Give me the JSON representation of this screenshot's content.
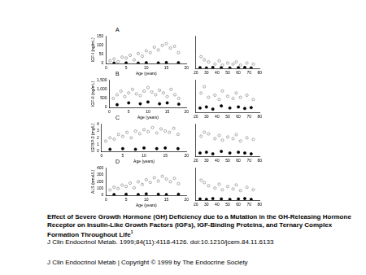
{
  "chart_data": [
    {
      "type": "scatter",
      "label": "A",
      "y_label": "IGF-I (ng/mL)",
      "x_label": "Age (years)",
      "xlim": [
        0,
        20
      ],
      "xticks": [
        0,
        5,
        10,
        15,
        20
      ],
      "ylim": [
        0,
        150
      ],
      "yticks": [
        0,
        50,
        100,
        150
      ],
      "grid": false,
      "series": [
        {
          "color": "#888888",
          "marker": "circle_open",
          "x": [
            1,
            2,
            3,
            4,
            5,
            6,
            7,
            8,
            9,
            10,
            11,
            12,
            13,
            14,
            15,
            16,
            17,
            18
          ],
          "values": [
            15,
            25,
            10,
            35,
            30,
            45,
            20,
            55,
            40,
            70,
            60,
            90,
            75,
            100,
            110,
            85,
            95,
            60
          ]
        },
        {
          "color": "#000000",
          "marker": "circle",
          "x": [
            2,
            5,
            8,
            10,
            13,
            15,
            18
          ],
          "values": [
            2,
            3,
            2,
            4,
            3,
            5,
            4
          ]
        }
      ]
    },
    {
      "type": "scatter",
      "tick_labels": "x",
      "xlim": [
        20,
        80
      ],
      "xticks": [
        20,
        30,
        40,
        50,
        60,
        70,
        80
      ],
      "ylim": [
        0,
        150
      ],
      "yticks": [
        0,
        50,
        100,
        150
      ],
      "grid": false,
      "series": [
        {
          "color": "#888888",
          "marker": "circle_open",
          "x": [
            25,
            28,
            32,
            38,
            42,
            45,
            50,
            55,
            58,
            62,
            68,
            74
          ],
          "values": [
            55,
            40,
            30,
            20,
            35,
            15,
            25,
            20,
            30,
            15,
            25,
            20
          ]
        },
        {
          "color": "#000000",
          "marker": "circle",
          "x": [
            24,
            30,
            36,
            44,
            52,
            60,
            66,
            72
          ],
          "values": [
            3,
            2,
            4,
            3,
            2,
            3,
            4,
            2
          ]
        }
      ]
    },
    {
      "type": "scatter",
      "label": "B",
      "y_label": "IGF-II (ng/mL)",
      "x_label": "Age (years)",
      "xlim": [
        0,
        20
      ],
      "xticks": [
        0,
        5,
        10,
        15,
        20
      ],
      "ylim": [
        0,
        1500
      ],
      "yticks": [
        0,
        500,
        1000,
        1500
      ],
      "grid": false,
      "series": [
        {
          "color": "#888888",
          "marker": "circle_open",
          "x": [
            1,
            2,
            3,
            4,
            5,
            6,
            7,
            8,
            9,
            10,
            11,
            12,
            13,
            14,
            15,
            16,
            17,
            18
          ],
          "values": [
            500,
            700,
            900,
            600,
            800,
            1000,
            750,
            650,
            900,
            1100,
            850,
            700,
            950,
            800,
            600,
            1000,
            700,
            500
          ]
        },
        {
          "color": "#000000",
          "marker": "circle",
          "x": [
            2,
            5,
            8,
            10,
            13,
            15,
            18
          ],
          "values": [
            150,
            250,
            200,
            300,
            200,
            250,
            180
          ]
        }
      ]
    },
    {
      "type": "scatter",
      "tick_labels": "x",
      "xlim": [
        20,
        80
      ],
      "xticks": [
        20,
        30,
        40,
        50,
        60,
        70,
        80
      ],
      "ylim": [
        0,
        1500
      ],
      "yticks": [
        0,
        500,
        1000,
        1500
      ],
      "grid": false,
      "series": [
        {
          "color": "#888888",
          "marker": "circle_open",
          "x": [
            25,
            28,
            32,
            38,
            42,
            45,
            50,
            55,
            58,
            62,
            68,
            74
          ],
          "values": [
            900,
            1200,
            700,
            800,
            600,
            1000,
            750,
            650,
            900,
            700,
            800,
            600
          ]
        },
        {
          "color": "#000000",
          "marker": "circle",
          "x": [
            24,
            30,
            36,
            44,
            52,
            60,
            66,
            72
          ],
          "values": [
            200,
            250,
            150,
            300,
            200,
            250,
            180,
            220
          ]
        }
      ]
    },
    {
      "type": "scatter",
      "label": "C",
      "y_label": "IGFBP-3 (mg/L)",
      "x_label": "Age (years)",
      "xlim": [
        0,
        20
      ],
      "xticks": [
        0,
        5,
        10,
        15,
        20
      ],
      "ylim": [
        0,
        4
      ],
      "yticks": [
        0,
        1,
        2,
        3,
        4
      ],
      "grid": false,
      "series": [
        {
          "color": "#888888",
          "marker": "circle_open",
          "x": [
            1,
            2,
            3,
            4,
            5,
            6,
            7,
            8,
            9,
            10,
            11,
            12,
            13,
            14,
            15,
            16,
            17,
            18
          ],
          "values": [
            1.5,
            2.0,
            1.8,
            2.5,
            2.2,
            2.8,
            2.0,
            3.0,
            2.6,
            3.2,
            2.9,
            3.5,
            2.7,
            3.3,
            3.0,
            2.8,
            3.4,
            2.5
          ]
        },
        {
          "color": "#000000",
          "marker": "circle",
          "x": [
            2,
            5,
            8,
            10,
            13,
            15,
            18
          ],
          "values": [
            0.3,
            0.4,
            0.3,
            0.5,
            0.4,
            0.5,
            0.4
          ]
        }
      ]
    },
    {
      "type": "scatter",
      "tick_labels": "x",
      "xlim": [
        20,
        80
      ],
      "xticks": [
        20,
        30,
        40,
        50,
        60,
        70,
        80
      ],
      "ylim": [
        0,
        4
      ],
      "yticks": [
        0,
        1,
        2,
        3,
        4
      ],
      "grid": false,
      "series": [
        {
          "color": "#888888",
          "marker": "circle_open",
          "x": [
            25,
            28,
            32,
            38,
            42,
            45,
            50,
            55,
            58,
            62,
            68,
            74
          ],
          "values": [
            2.5,
            3.0,
            2.8,
            2.2,
            2.6,
            2.0,
            2.4,
            2.2,
            2.7,
            1.9,
            2.3,
            2.1
          ]
        },
        {
          "color": "#000000",
          "marker": "circle",
          "x": [
            24,
            30,
            36,
            44,
            52,
            60,
            66,
            72
          ],
          "values": [
            0.4,
            0.5,
            0.3,
            0.6,
            0.4,
            0.5,
            0.4,
            0.3
          ]
        }
      ]
    },
    {
      "type": "scatter",
      "label": "D",
      "y_label": "ALS (nmol/L)",
      "x_label": "Age (years)",
      "xlim": [
        0,
        20
      ],
      "xticks": [
        0,
        5,
        10,
        15,
        20
      ],
      "ylim": [
        0,
        400
      ],
      "yticks": [
        0,
        100,
        200,
        300,
        400
      ],
      "grid": false,
      "series": [
        {
          "color": "#888888",
          "marker": "circle_open",
          "x": [
            1,
            2,
            3,
            4,
            5,
            6,
            7,
            8,
            9,
            10,
            11,
            12,
            13,
            14,
            15,
            16,
            17,
            18
          ],
          "values": [
            80,
            120,
            100,
            150,
            130,
            180,
            110,
            200,
            160,
            230,
            190,
            260,
            210,
            280,
            240,
            200,
            250,
            170
          ]
        },
        {
          "color": "#000000",
          "marker": "circle",
          "x": [
            2,
            5,
            8,
            10,
            13,
            15,
            18
          ],
          "values": [
            10,
            15,
            10,
            20,
            15,
            10,
            15
          ]
        }
      ]
    },
    {
      "type": "scatter",
      "tick_labels": "x",
      "xlim": [
        20,
        80
      ],
      "xticks": [
        20,
        30,
        40,
        50,
        60,
        70,
        80
      ],
      "ylim": [
        0,
        400
      ],
      "yticks": [
        0,
        100,
        200,
        300,
        400
      ],
      "grid": false,
      "series": [
        {
          "color": "#888888",
          "marker": "circle_open",
          "x": [
            25,
            28,
            32,
            38,
            42,
            45,
            50,
            55,
            58,
            62,
            68,
            74
          ],
          "values": [
            250,
            220,
            180,
            150,
            200,
            130,
            170,
            140,
            190,
            120,
            160,
            130
          ]
        },
        {
          "color": "#000000",
          "marker": "circle",
          "x": [
            24,
            30,
            36,
            44,
            52,
            60,
            66,
            72
          ],
          "values": [
            15,
            10,
            20,
            15,
            10,
            15,
            20,
            10
          ]
        }
      ]
    }
  ],
  "caption": {
    "title": "Effect of Severe Growth Hormone (GH) Deficiency due to a Mutation in the GH-Releasing Hormone Receptor on Insulin-Like Growth Factors (IGFs), IGF-Binding Proteins, and Ternary Complex Formation Throughout Life",
    "title_note": "1",
    "citation": "J Clin Endocrinol Metab. 1999;84(11):4118-4126. doi:10.1210/jcem.84.11.6133",
    "footer": "J Clin Endocrinol Metab | Copyright © 1999 by The Endocrine Society"
  }
}
